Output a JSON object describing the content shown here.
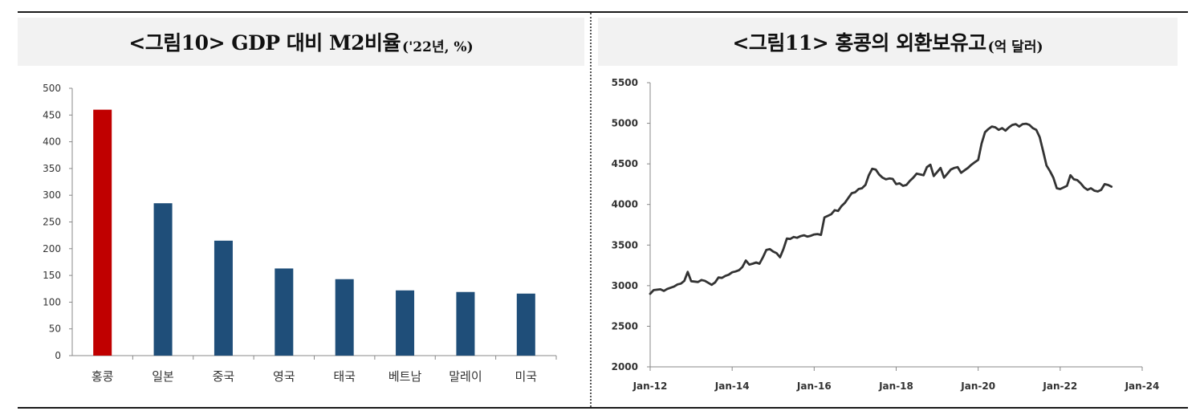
{
  "figure10": {
    "title": "<그림10> GDP  대비  M2비율",
    "subtitle": "('22년, %)"
  },
  "figure11": {
    "title": "<그림11> 홍콩의  외환보유고",
    "subtitle": "(억 달러)"
  },
  "colors": {
    "highlight_bar": "#c00000",
    "bar": "#1f4e79",
    "line": "#333333",
    "title_background": "#f2f2f2"
  },
  "chart_data": [
    {
      "type": "bar",
      "title": "<그림10> GDP 대비 M2비율('22년, %)",
      "categories": [
        "홍콩",
        "일본",
        "중국",
        "영국",
        "태국",
        "베트남",
        "말레이",
        "미국"
      ],
      "values": [
        460,
        285,
        215,
        163,
        143,
        122,
        119,
        116
      ],
      "ylim": [
        0,
        500
      ],
      "yticks": [
        0,
        50,
        100,
        150,
        200,
        250,
        300,
        350,
        400,
        450,
        500
      ],
      "highlight_index": 0,
      "xlabel": "",
      "ylabel": "",
      "grid": false
    },
    {
      "type": "line",
      "title": "<그림11> 홍콩의 외환보유고(억 달러)",
      "x_start": "2012-01",
      "frequency": "monthly",
      "xticks": [
        "Jan-12",
        "Jan-14",
        "Jan-16",
        "Jan-18",
        "Jan-20",
        "Jan-22",
        "Jan-24"
      ],
      "ylim": [
        2000,
        5500
      ],
      "yticks": [
        2000,
        2500,
        3000,
        3500,
        4000,
        4500,
        5000,
        5500
      ],
      "values": [
        2900,
        2945,
        2950,
        2955,
        2935,
        2960,
        2975,
        2990,
        3015,
        3025,
        3060,
        3170,
        3055,
        3050,
        3045,
        3070,
        3060,
        3035,
        3010,
        3040,
        3100,
        3095,
        3120,
        3135,
        3165,
        3175,
        3190,
        3230,
        3310,
        3260,
        3270,
        3285,
        3270,
        3350,
        3440,
        3450,
        3420,
        3400,
        3350,
        3450,
        3580,
        3575,
        3600,
        3590,
        3610,
        3620,
        3605,
        3615,
        3630,
        3635,
        3625,
        3840,
        3860,
        3880,
        3930,
        3920,
        3980,
        4020,
        4080,
        4140,
        4150,
        4190,
        4200,
        4240,
        4360,
        4440,
        4430,
        4370,
        4330,
        4310,
        4320,
        4315,
        4250,
        4260,
        4230,
        4240,
        4290,
        4330,
        4380,
        4370,
        4360,
        4460,
        4490,
        4350,
        4400,
        4450,
        4330,
        4380,
        4430,
        4450,
        4460,
        4390,
        4420,
        4450,
        4490,
        4520,
        4550,
        4750,
        4890,
        4930,
        4960,
        4950,
        4920,
        4940,
        4910,
        4950,
        4980,
        4990,
        4960,
        4990,
        4995,
        4980,
        4940,
        4920,
        4830,
        4660,
        4480,
        4410,
        4330,
        4200,
        4190,
        4210,
        4230,
        4360,
        4310,
        4300,
        4260,
        4210,
        4180,
        4200,
        4170,
        4160,
        4180,
        4250,
        4240,
        4220
      ],
      "xlabel": "",
      "ylabel": "",
      "grid": false
    }
  ]
}
